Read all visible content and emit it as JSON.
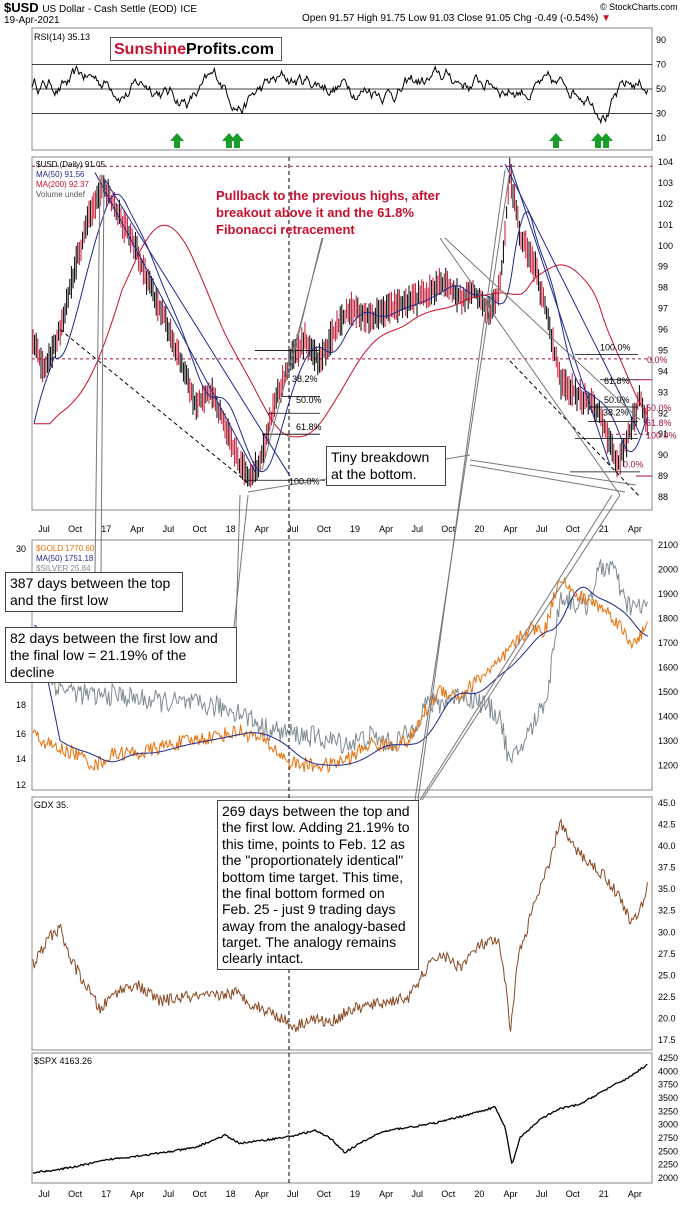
{
  "header": {
    "symbol": "$USD",
    "name": "US Dollar - Cash Settle (EOD)",
    "exchange": "ICE",
    "date": "19-Apr-2021",
    "ohlc": "Open 91.57  High 91.75  Low 91.03  Close 91.05  Chg -0.49 (-0.54%)",
    "credit": "© StockCharts.com"
  },
  "logo": {
    "part1": "Sunshine",
    "part2": "Profits.com"
  },
  "rsi_panel": {
    "label": "RSI(14) 35.13",
    "ticks": [
      "90",
      "70",
      "50",
      "30",
      "10"
    ],
    "arrow_color": "#1a9e2a"
  },
  "usd_panel": {
    "legend": [
      "$USD (Daily) 91.05",
      "MA(50) 91.56",
      "MA(200) 92.37",
      "Volume undef"
    ],
    "ticks": [
      "104",
      "103",
      "102",
      "101",
      "100",
      "99",
      "98",
      "97",
      "96",
      "95",
      "94",
      "93",
      "92",
      "91",
      "90",
      "89",
      "88"
    ],
    "fib_left": [
      "38.2%",
      "50.0%",
      "61.8%",
      "100.0%"
    ],
    "fib_right": [
      "100.0%",
      "0.0%",
      "61.8%",
      "50.0%",
      "38.2%",
      "50.0%",
      "61.8%",
      "100.0%",
      "0.0%"
    ]
  },
  "gold_panel": {
    "legend": [
      "$GOLD 1770.60",
      "MA(50) 1751.18",
      "$SILVER 25.84"
    ],
    "ticks_right": [
      "2100",
      "2000",
      "1900",
      "1800",
      "1700",
      "1600",
      "1500",
      "1400",
      "1300",
      "1200"
    ],
    "ticks_left": [
      "30",
      "18",
      "16",
      "14",
      "12"
    ]
  },
  "gdx_panel": {
    "label": "GDX 35.",
    "ticks": [
      "45.0",
      "42.5",
      "40.0",
      "37.5",
      "35.0",
      "32.5",
      "30.0",
      "27.5",
      "25.0",
      "22.5",
      "20.0",
      "17.5"
    ]
  },
  "spx_panel": {
    "label": "$SPX 4163.26",
    "ticks": [
      "4250",
      "4000",
      "3750",
      "3500",
      "3250",
      "3000",
      "2750",
      "2500",
      "2250",
      "2000"
    ]
  },
  "x_axis": [
    "Jul",
    "Oct",
    "17",
    "Apr",
    "Jul",
    "Oct",
    "18",
    "Apr",
    "Jul",
    "Oct",
    "19",
    "Apr",
    "Jul",
    "Oct",
    "20",
    "Apr",
    "Jul",
    "Oct",
    "21",
    "Apr"
  ],
  "annotations": {
    "pullback": "Pullback to the previous highs, after breakout above it and the 61.8% Fibonacci retracement",
    "tiny_breakdown": "Tiny breakdown at the bottom.",
    "days_387": "387 days between the top and the first low",
    "days_82": "82 days between the first low and the final low = 21.19% of the decline",
    "days_269": "269 days between the top and the first low. Adding 21.19% to this time, points to Feb. 12 as the \"proportionately identical\" bottom time target. This time, the final bottom formed on Feb. 25 - just 9 trading days away from the analogy-based target. The analogy remains clearly intact."
  },
  "colors": {
    "price": "#000000",
    "ma50": "#1f2a8f",
    "ma200": "#c8102e",
    "gold": "#e8700a",
    "silver": "#7f8c94",
    "gdx": "#8b4a23",
    "fib": "#000000",
    "resistance": "#a0104a"
  }
}
